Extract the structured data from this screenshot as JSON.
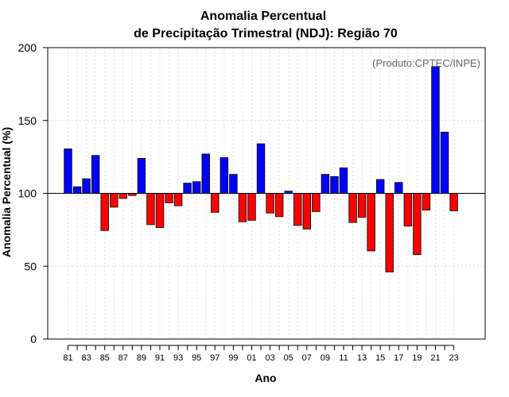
{
  "chart_data": {
    "type": "bar",
    "title_line1": "Anomalia Percentual",
    "title_line2": "de Precipitação Trimestral (NDJ): Região 70",
    "xlabel": "Ano",
    "ylabel": "Anomalia Percentual (%)",
    "watermark": "(Produto:CPTEC/INPE)",
    "ylim": [
      0,
      200
    ],
    "yticks": [
      0,
      50,
      100,
      150,
      200
    ],
    "yticks_labels": [
      "0",
      "50",
      "100",
      "150",
      "200"
    ],
    "baseline": 100,
    "colors": {
      "above": "#0000ff",
      "below": "#ff0000"
    },
    "categories": [
      "1981",
      "1982",
      "1983",
      "1984",
      "1985",
      "1986",
      "1987",
      "1988",
      "1989",
      "1990",
      "1991",
      "1992",
      "1993",
      "1994",
      "1995",
      "1996",
      "1997",
      "1998",
      "1999",
      "2000",
      "2001",
      "2002",
      "2003",
      "2004",
      "2005",
      "2006",
      "2007",
      "2008",
      "2009",
      "2010",
      "2011",
      "2012",
      "2013",
      "2014",
      "2015",
      "2016",
      "2017",
      "2018",
      "2019",
      "2020",
      "2021",
      "2022",
      "2023"
    ],
    "values": [
      130.5,
      104.5,
      110.0,
      126.0,
      74.5,
      90.5,
      96.5,
      98.5,
      124.0,
      78.5,
      76.5,
      93.5,
      91.5,
      107.0,
      108.0,
      127.0,
      87.0,
      124.5,
      113.0,
      80.5,
      81.5,
      134.0,
      86.5,
      84.0,
      101.5,
      78.0,
      75.5,
      87.5,
      113.0,
      111.5,
      117.5,
      80.0,
      83.5,
      60.5,
      109.5,
      46.0,
      107.5,
      77.5,
      58.0,
      88.5,
      187.0,
      142.0,
      88.0
    ],
    "xtick_labels": [
      "81",
      "83",
      "85",
      "87",
      "89",
      "91",
      "93",
      "95",
      "97",
      "99",
      "01",
      "03",
      "05",
      "07",
      "09",
      "11",
      "13",
      "15",
      "17",
      "19",
      "21",
      "23"
    ]
  }
}
